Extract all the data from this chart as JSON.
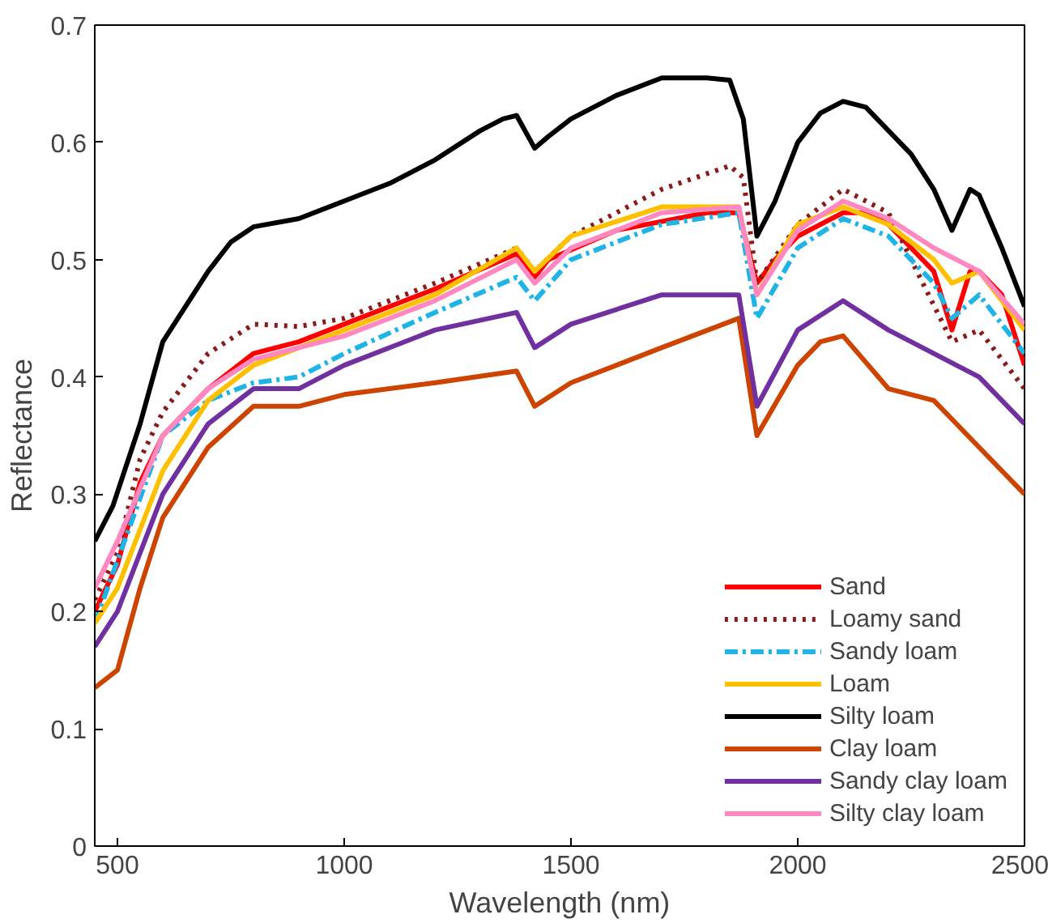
{
  "chart_data": {
    "type": "line",
    "xlabel": "Wavelength (nm)",
    "ylabel": "Reflectance",
    "xlim": [
      450,
      2500
    ],
    "ylim": [
      0,
      0.7
    ],
    "xticks": [
      500,
      1000,
      1500,
      2000,
      2500
    ],
    "yticks": [
      0,
      0.1,
      0.2,
      0.3,
      0.4,
      0.5,
      0.6,
      0.7
    ],
    "grid": false,
    "legend": "bottom right",
    "marker": "none",
    "series": [
      {
        "name": "Sand",
        "color": "#ff0000",
        "line_style": "solid",
        "x": [
          450,
          500,
          550,
          600,
          700,
          800,
          900,
          1000,
          1200,
          1350,
          1380,
          1420,
          1450,
          1600,
          1800,
          1870,
          1910,
          1950,
          2000,
          2100,
          2150,
          2200,
          2250,
          2300,
          2340,
          2380,
          2400,
          2450,
          2500
        ],
        "values": [
          0.2,
          0.24,
          0.31,
          0.35,
          0.39,
          0.42,
          0.43,
          0.445,
          0.475,
          0.5,
          0.505,
          0.485,
          0.5,
          0.525,
          0.54,
          0.54,
          0.48,
          0.5,
          0.52,
          0.54,
          0.54,
          0.53,
          0.51,
          0.49,
          0.44,
          0.49,
          0.49,
          0.47,
          0.41
        ]
      },
      {
        "name": "Loamy sand",
        "color": "#8b1a1a",
        "line_style": "dotted",
        "x": [
          450,
          500,
          550,
          600,
          700,
          800,
          900,
          1000,
          1200,
          1380,
          1420,
          1500,
          1700,
          1850,
          1880,
          1910,
          2000,
          2100,
          2200,
          2250,
          2340,
          2400,
          2500
        ],
        "values": [
          0.21,
          0.25,
          0.33,
          0.37,
          0.42,
          0.445,
          0.443,
          0.45,
          0.48,
          0.51,
          0.49,
          0.52,
          0.56,
          0.58,
          0.57,
          0.48,
          0.53,
          0.56,
          0.54,
          0.5,
          0.43,
          0.44,
          0.39
        ]
      },
      {
        "name": "Sandy loam",
        "color": "#1fb4e6",
        "line_style": "dashed",
        "x": [
          450,
          600,
          700,
          800,
          900,
          1000,
          1200,
          1380,
          1420,
          1500,
          1700,
          1870,
          1910,
          2000,
          2100,
          2200,
          2300,
          2340,
          2400,
          2500
        ],
        "values": [
          0.19,
          0.35,
          0.38,
          0.395,
          0.4,
          0.42,
          0.455,
          0.485,
          0.465,
          0.5,
          0.53,
          0.54,
          0.45,
          0.51,
          0.535,
          0.52,
          0.48,
          0.45,
          0.47,
          0.42
        ]
      },
      {
        "name": "Loam",
        "color": "#ffc000",
        "line_style": "solid",
        "x": [
          450,
          500,
          600,
          700,
          800,
          1000,
          1200,
          1380,
          1420,
          1500,
          1700,
          1870,
          1910,
          2000,
          2100,
          2200,
          2300,
          2340,
          2400,
          2500
        ],
        "values": [
          0.19,
          0.22,
          0.32,
          0.38,
          0.41,
          0.44,
          0.47,
          0.51,
          0.49,
          0.52,
          0.545,
          0.545,
          0.47,
          0.53,
          0.545,
          0.53,
          0.5,
          0.48,
          0.49,
          0.44
        ]
      },
      {
        "name": "Silty loam",
        "color": "#000000",
        "line_style": "solid",
        "x": [
          450,
          490,
          550,
          600,
          650,
          700,
          750,
          800,
          900,
          1000,
          1100,
          1200,
          1300,
          1350,
          1380,
          1420,
          1450,
          1500,
          1600,
          1700,
          1800,
          1850,
          1880,
          1910,
          1950,
          2000,
          2050,
          2100,
          2150,
          2200,
          2250,
          2300,
          2340,
          2380,
          2400,
          2450,
          2500
        ],
        "values": [
          0.26,
          0.29,
          0.36,
          0.43,
          0.46,
          0.49,
          0.515,
          0.528,
          0.535,
          0.55,
          0.565,
          0.585,
          0.61,
          0.62,
          0.623,
          0.595,
          0.605,
          0.62,
          0.64,
          0.655,
          0.655,
          0.653,
          0.62,
          0.52,
          0.55,
          0.6,
          0.625,
          0.635,
          0.63,
          0.61,
          0.59,
          0.56,
          0.525,
          0.56,
          0.555,
          0.51,
          0.46
        ]
      },
      {
        "name": "Clay loam",
        "color": "#cc4400",
        "line_style": "solid",
        "x": [
          450,
          500,
          550,
          600,
          700,
          800,
          900,
          1000,
          1200,
          1380,
          1420,
          1500,
          1700,
          1870,
          1910,
          2000,
          2050,
          2100,
          2200,
          2300,
          2400,
          2500
        ],
        "values": [
          0.135,
          0.15,
          0.22,
          0.28,
          0.34,
          0.375,
          0.375,
          0.385,
          0.395,
          0.405,
          0.375,
          0.395,
          0.425,
          0.45,
          0.35,
          0.41,
          0.43,
          0.435,
          0.39,
          0.38,
          0.34,
          0.3
        ]
      },
      {
        "name": "Sandy clay loam",
        "color": "#7030a0",
        "line_style": "solid",
        "x": [
          450,
          500,
          600,
          700,
          800,
          900,
          1000,
          1200,
          1380,
          1420,
          1500,
          1700,
          1870,
          1910,
          2000,
          2100,
          2200,
          2300,
          2400,
          2500
        ],
        "values": [
          0.17,
          0.2,
          0.3,
          0.36,
          0.39,
          0.39,
          0.41,
          0.44,
          0.455,
          0.425,
          0.445,
          0.47,
          0.47,
          0.375,
          0.44,
          0.465,
          0.44,
          0.42,
          0.4,
          0.36
        ]
      },
      {
        "name": "Silty clay loam",
        "color": "#ff88c0",
        "line_style": "solid",
        "x": [
          450,
          500,
          600,
          700,
          800,
          1000,
          1200,
          1380,
          1420,
          1500,
          1700,
          1870,
          1910,
          2000,
          2100,
          2200,
          2300,
          2400,
          2500
        ],
        "values": [
          0.22,
          0.26,
          0.35,
          0.39,
          0.415,
          0.435,
          0.465,
          0.5,
          0.48,
          0.51,
          0.54,
          0.545,
          0.47,
          0.525,
          0.55,
          0.535,
          0.51,
          0.49,
          0.445
        ]
      }
    ]
  }
}
